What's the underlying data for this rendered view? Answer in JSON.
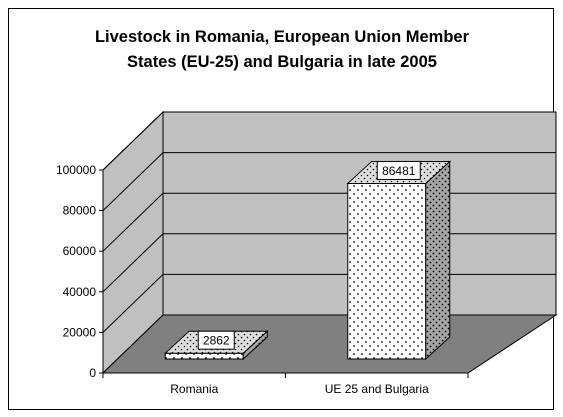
{
  "chart_data": {
    "type": "bar",
    "title_lines": [
      "Livestock in Romania, European Union Member",
      "States (EU-25) and Bulgaria in late 2005"
    ],
    "categories": [
      "Romania",
      "UE 25 and Bulgaria"
    ],
    "values": [
      2862,
      86481
    ],
    "data_labels": [
      "2862",
      "86481"
    ],
    "yticks": [
      "0",
      "20000",
      "40000",
      "60000",
      "80000",
      "100000"
    ],
    "ylim": [
      0,
      100000
    ],
    "xlabel": "",
    "ylabel": "",
    "grid": true,
    "legend": "none",
    "colors": {
      "wall": "#c0c0c0",
      "floor": "#808080",
      "bar_front": "#ffffff",
      "bar_side": "#a0a0a0",
      "bar_top": "#d8d8d8"
    }
  }
}
